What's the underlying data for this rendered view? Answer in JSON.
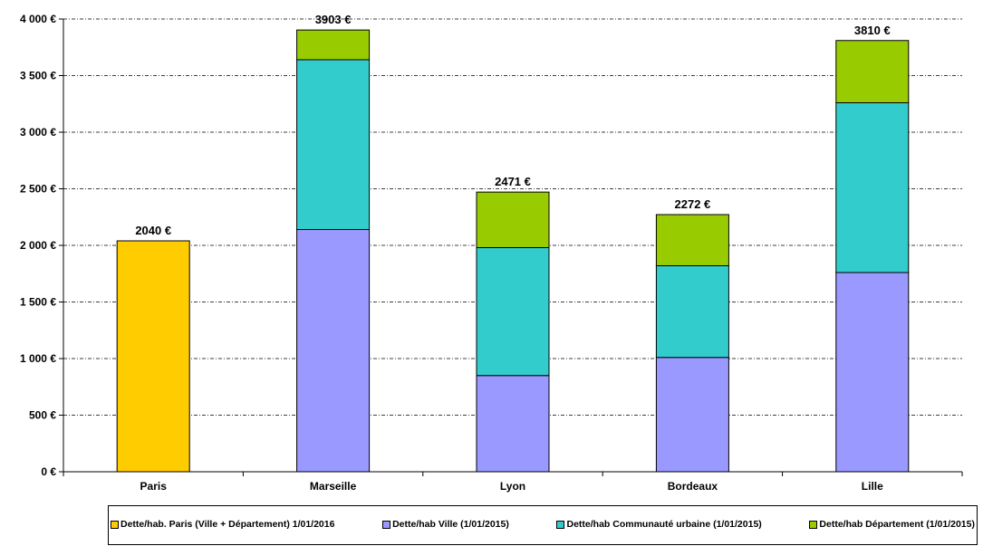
{
  "chart_data": {
    "type": "bar",
    "stacked": true,
    "categories": [
      "Paris",
      "Marseille",
      "Lyon",
      "Bordeaux",
      "Lille"
    ],
    "series": [
      {
        "name": "Dette/hab. Paris (Ville + Département) 1/01/2016",
        "color": "#ffcc00",
        "values": [
          2040,
          0,
          0,
          0,
          0
        ]
      },
      {
        "name": "Dette/hab Ville (1/01/2015)",
        "color": "#9999ff",
        "values": [
          0,
          2140,
          850,
          1010,
          1760
        ]
      },
      {
        "name": "Dette/hab Communauté urbaine (1/01/2015)",
        "color": "#33cccc",
        "values": [
          0,
          1500,
          1130,
          810,
          1500
        ]
      },
      {
        "name": "Dette/hab Département (1/01/2015)",
        "color": "#99cc00",
        "values": [
          0,
          263,
          491,
          452,
          550
        ]
      }
    ],
    "totals": [
      "2040 €",
      "3903 €",
      "2471 €",
      "2272 €",
      "3810 €"
    ],
    "yticks": [
      0,
      500,
      1000,
      1500,
      2000,
      2500,
      3000,
      3500,
      4000
    ],
    "ytick_labels": [
      "0 €",
      "500 €",
      "1 000 €",
      "1 500 €",
      "2 000 €",
      "2 500 €",
      "3 000 €",
      "3 500 €",
      "4 000 €"
    ],
    "ylim": [
      0,
      4000
    ],
    "grid": true,
    "legend_position": "bottom"
  }
}
